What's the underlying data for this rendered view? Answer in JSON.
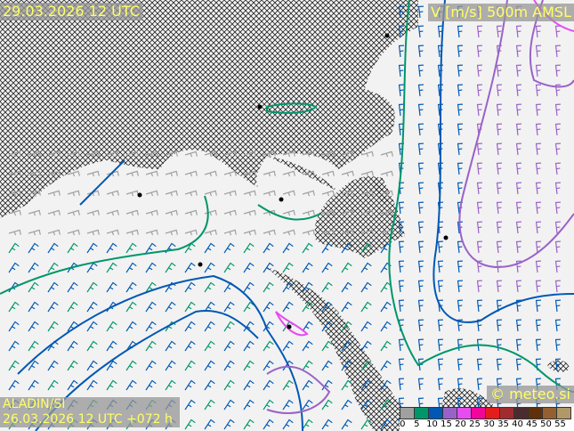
{
  "header": {
    "valid_time": "29.03.2026 12 UTC",
    "field": "V [m/s] 500m AMSL"
  },
  "footer": {
    "model": "ALADIN/SI",
    "run": "26.03.2026 12 UTC +072 h",
    "copyright": "© meteo.si"
  },
  "legend": {
    "ticks": [
      "0",
      "5",
      "10",
      "15",
      "20",
      "25",
      "30",
      "35",
      "40",
      "45",
      "50",
      "55"
    ],
    "colors": [
      "#a0a0a0",
      "#00966a",
      "#0058b4",
      "#9a62c8",
      "#e64cf0",
      "#f0069a",
      "#e41c1c",
      "#a02c30",
      "#4a2c30",
      "#60300a",
      "#946032",
      "#b09868"
    ]
  },
  "map": {
    "sea_pattern": "crosshatch",
    "land_color": "#f2f2f2"
  }
}
